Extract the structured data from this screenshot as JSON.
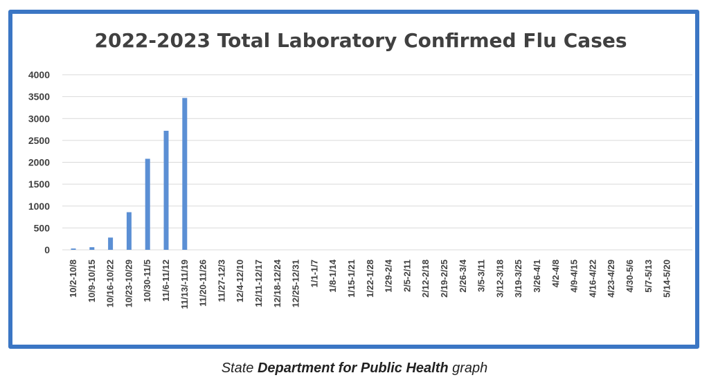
{
  "chart_data": {
    "type": "bar",
    "title": "2022-2023 Total Laboratory Confirmed Flu Cases",
    "xlabel": "",
    "ylabel": "",
    "ylim": [
      0,
      4000
    ],
    "yticks": [
      0,
      500,
      1000,
      1500,
      2000,
      2500,
      3000,
      3500,
      4000
    ],
    "grid": true,
    "legend": "none",
    "bar_color": "#5b8fd4",
    "categories": [
      "10/2-10/8",
      "10/9-10/15",
      "10/16-10/22",
      "10/23-10/29",
      "10/30-11/5",
      "11/6-11/12",
      "11/13/-11/19",
      "11/20-11/26",
      "11/27-12/3",
      "12/4-12/10",
      "12/11-12/17",
      "12/18-12/24",
      "12/25-12/31",
      "1/1-1/7",
      "1/8-1/14",
      "1/15-1/21",
      "1/22-1/28",
      "1/29-2/4",
      "2/5-2/11",
      "2/12-2/18",
      "2/19-2/25",
      "2/26-3/4",
      "3/5-3/11",
      "3/12-3/18",
      "3/19-3/25",
      "3/26-4/1",
      "4/2-4/8",
      "4/9-4/15",
      "4/16-4/22",
      "4/23-4/29",
      "4/30-5/6",
      "5/7-5/13",
      "5/14-5/20"
    ],
    "values": [
      30,
      60,
      280,
      860,
      2080,
      2720,
      3470,
      null,
      null,
      null,
      null,
      null,
      null,
      null,
      null,
      null,
      null,
      null,
      null,
      null,
      null,
      null,
      null,
      null,
      null,
      null,
      null,
      null,
      null,
      null,
      null,
      null,
      null
    ]
  },
  "caption": {
    "part1": "State ",
    "bold": "Department for Public Health",
    "part2": " graph"
  }
}
